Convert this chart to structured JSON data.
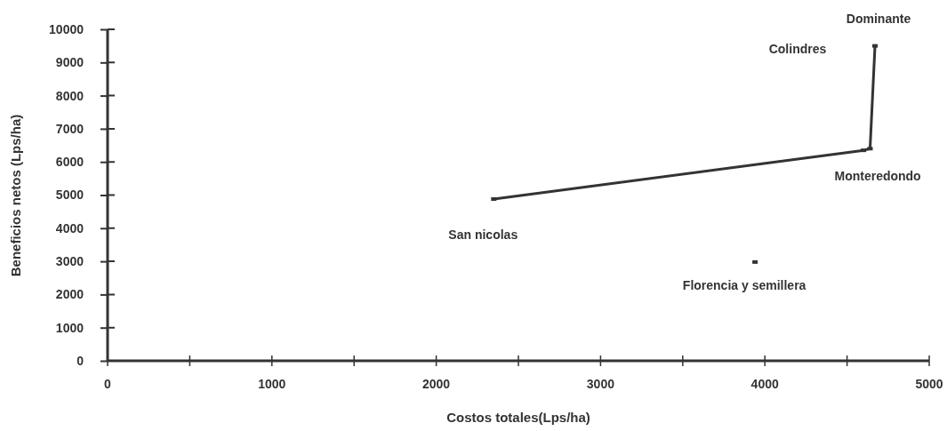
{
  "chart_data": {
    "type": "line",
    "xlabel": "Costos totales(Lps/ha)",
    "ylabel": "Beneficios netos (Lps/ha)",
    "series": [
      {
        "color": "#333333",
        "x": [
          2350,
          4600,
          4640,
          4670
        ],
        "values": [
          4880,
          6350,
          6400,
          9500
        ]
      },
      {
        "type": "scatter",
        "color": "#333333",
        "x": [
          3940
        ],
        "values": [
          2980
        ]
      }
    ],
    "annotations": [
      {
        "text": "San nicolas",
        "x": 2350,
        "y": 4880
      },
      {
        "text": "Monteredondo",
        "x": 4600,
        "y": 6350
      },
      "Colindres",
      {
        "text": "Dominante",
        "x": 4670,
        "y": 9500
      },
      {
        "text": "Florencia y semillera",
        "x": 3940,
        "y": 2980
      }
    ],
    "xlim": [
      0,
      5000
    ],
    "xticks": [
      0,
      {
        "value": 500,
        "label": null
      },
      1000,
      {
        "value": 1500,
        "label": null
      },
      2000,
      {
        "value": 2500,
        "label": null
      },
      3000,
      {
        "value": 3500,
        "label": null
      },
      4000,
      {
        "value": 4500,
        "label": null
      },
      5000
    ],
    "ylim": [
      0,
      10000
    ],
    "yticks": [
      0,
      1000,
      2000,
      3000,
      4000,
      5000,
      6000,
      7000,
      8000,
      9000,
      10000
    ],
    "grid": false,
    "marker": "square",
    "line_style": "solid"
  }
}
